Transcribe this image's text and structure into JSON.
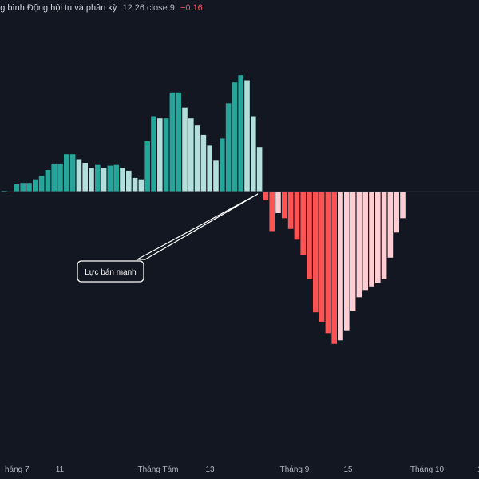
{
  "header": {
    "title": "ung bình Động hội tụ và phân kỳ",
    "params": "12 26 close 9",
    "value": "−0.16"
  },
  "colors": {
    "background": "#131722",
    "pos_strong": "#26a69a",
    "pos_weak": "#b2dfdb",
    "neg_strong": "#ff5252",
    "neg_weak": "#ffcdd2",
    "zero_line": "#2a2e39"
  },
  "chart_data": {
    "type": "bar",
    "title": "ung bình Động hội tụ và phân kỳ",
    "x_tick_labels": [
      "háng 7",
      "11",
      "Tháng Tám",
      "13",
      "Tháng 9",
      "15",
      "Tháng 10",
      "1"
    ],
    "values": [
      0.01,
      -0.01,
      0.1,
      0.12,
      0.12,
      0.17,
      0.22,
      0.3,
      0.39,
      0.39,
      0.52,
      0.52,
      0.45,
      0.4,
      0.33,
      0.37,
      0.33,
      0.36,
      0.37,
      0.33,
      0.29,
      0.19,
      0.17,
      0.7,
      1.05,
      1.02,
      1.02,
      1.38,
      1.38,
      1.17,
      1.02,
      0.92,
      0.79,
      0.64,
      0.43,
      0.74,
      1.23,
      1.52,
      1.62,
      1.55,
      1.05,
      0.62,
      -0.12,
      -0.55,
      -0.3,
      -0.37,
      -0.52,
      -0.67,
      -0.88,
      -1.22,
      -1.68,
      -1.81,
      -1.97,
      -2.12,
      -2.07,
      -1.93,
      -1.66,
      -1.47,
      -1.37,
      -1.32,
      -1.27,
      -1.22,
      -0.92,
      -0.57,
      -0.37
    ],
    "annotation": "Lực bán mạnh"
  }
}
